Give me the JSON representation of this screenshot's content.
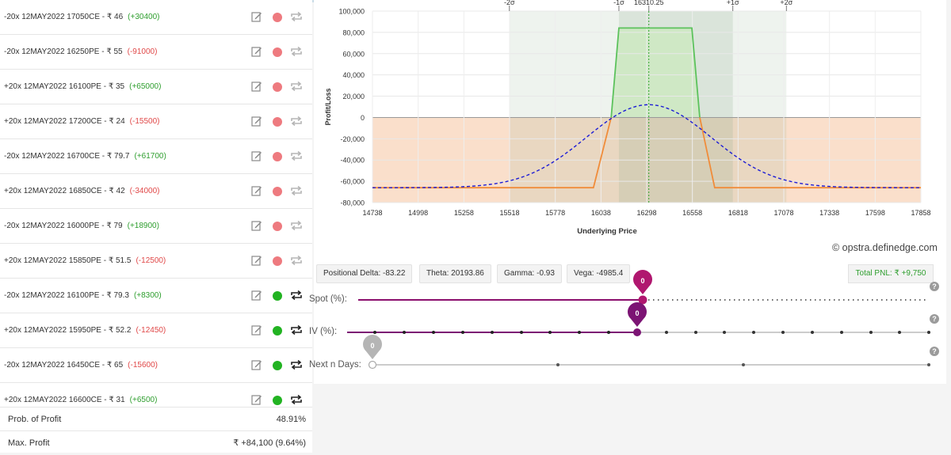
{
  "legs": [
    {
      "desc": "-20x 12MAY2022 17050CE - ₹ 46",
      "pnl": "(+30400)",
      "sign": "pos",
      "active": false
    },
    {
      "desc": "-20x 12MAY2022 16250PE - ₹ 55",
      "pnl": "(-91000)",
      "sign": "neg",
      "active": false
    },
    {
      "desc": "+20x 12MAY2022 16100PE - ₹ 35",
      "pnl": "(+65000)",
      "sign": "pos",
      "active": false
    },
    {
      "desc": "+20x 12MAY2022 17200CE - ₹ 24",
      "pnl": "(-15500)",
      "sign": "neg",
      "active": false
    },
    {
      "desc": "-20x 12MAY2022 16700CE - ₹ 79.7",
      "pnl": "(+61700)",
      "sign": "pos",
      "active": false
    },
    {
      "desc": "+20x 12MAY2022 16850CE - ₹ 42",
      "pnl": "(-34000)",
      "sign": "neg",
      "active": false
    },
    {
      "desc": "-20x 12MAY2022 16000PE - ₹ 79",
      "pnl": "(+18900)",
      "sign": "pos",
      "active": false
    },
    {
      "desc": "+20x 12MAY2022 15850PE - ₹ 51.5",
      "pnl": "(-12500)",
      "sign": "neg",
      "active": false
    },
    {
      "desc": "-20x 12MAY2022 16100PE - ₹ 79.3",
      "pnl": "(+8300)",
      "sign": "pos",
      "active": true
    },
    {
      "desc": "+20x 12MAY2022 15950PE - ₹ 52.2",
      "pnl": "(-12450)",
      "sign": "neg",
      "active": true
    },
    {
      "desc": "-20x 12MAY2022 16450CE - ₹ 65",
      "pnl": "(-15600)",
      "sign": "neg",
      "active": true
    },
    {
      "desc": "+20x 12MAY2022 16600CE - ₹ 31",
      "pnl": "(+6500)",
      "sign": "pos",
      "active": true
    }
  ],
  "summary": {
    "prob_label": "Prob. of Profit",
    "prob_value": "48.91%",
    "maxp_label": "Max. Profit",
    "maxp_value": "₹ +84,100 (9.64%)"
  },
  "chart_data": {
    "type": "area",
    "xlabel": "Underlying Price",
    "ylabel": "Profit/Loss",
    "xlim": [
      14738,
      17858
    ],
    "ylim": [
      -80000,
      100000
    ],
    "x_ticks": [
      "14738",
      "14998",
      "15258",
      "15518",
      "15778",
      "16038",
      "16298",
      "16558",
      "16818",
      "17078",
      "17338",
      "17598",
      "17858"
    ],
    "y_ticks": [
      "100,000",
      "80,000",
      "60,000",
      "40,000",
      "20,000",
      "0",
      "-20,000",
      "-40,000",
      "-60,000",
      "-80,000"
    ],
    "sigma_labels": [
      "-2σ",
      "-1σ",
      "16310.25",
      "+1σ",
      "+2σ"
    ],
    "spot": 16310.25,
    "sigma1": [
      16140,
      16788
    ],
    "sigma2": [
      15517,
      17093
    ],
    "series": [
      {
        "style": "expiry",
        "points": [
          [
            14738,
            -66000
          ],
          [
            15995,
            -66000
          ],
          [
            16096,
            0
          ],
          [
            16140,
            84100
          ],
          [
            16555,
            84100
          ],
          [
            16600,
            0
          ],
          [
            16685,
            -66000
          ],
          [
            17858,
            -66000
          ]
        ]
      },
      {
        "style": "today",
        "mean": 16310,
        "sd": 355,
        "peak": 12000,
        "base": -66000
      }
    ],
    "colors": {
      "profit": "#5cc25c",
      "loss": "#f08c3a",
      "today": "#1c1cd6",
      "spot": "#2fa32f"
    }
  },
  "greeks": {
    "delta": "Positional Delta: -83.22",
    "theta": "Theta: 20193.86",
    "gamma": "Gamma: -0.93",
    "vega": "Vega: -4985.4",
    "total_pnl": "Total PNL: ₹ +9,750"
  },
  "watermark": "© opstra.definedge.com",
  "sliders": {
    "spot_label": "Spot (%):",
    "spot_value": "0",
    "iv_label": "IV (%):",
    "iv_value": "0",
    "days_label": "Next n Days:",
    "days_value": "0",
    "help": "?"
  }
}
